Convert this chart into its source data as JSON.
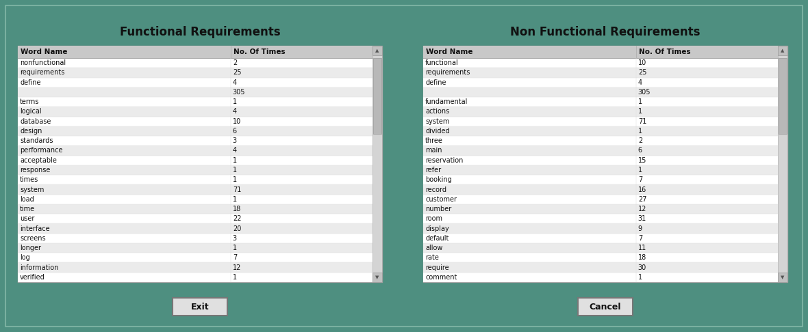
{
  "bg_color": "#4e8f80",
  "panel_bg": "#4e8f80",
  "title_color": "#111111",
  "functional_title": "Functional Requirements",
  "nonfunctional_title": "Non Functional Requirements",
  "col_headers": [
    "Word Name",
    "No. Of Times"
  ],
  "functional_data": [
    [
      "nonfunctional",
      "2"
    ],
    [
      "requirements",
      "25"
    ],
    [
      "define",
      "4"
    ],
    [
      "",
      "305"
    ],
    [
      "terms",
      "1"
    ],
    [
      "logical",
      "4"
    ],
    [
      "database",
      "10"
    ],
    [
      "design",
      "6"
    ],
    [
      "standards",
      "3"
    ],
    [
      "performance",
      "4"
    ],
    [
      "acceptable",
      "1"
    ],
    [
      "response",
      "1"
    ],
    [
      "times",
      "1"
    ],
    [
      "system",
      "71"
    ],
    [
      "load",
      "1"
    ],
    [
      "time",
      "18"
    ],
    [
      "user",
      "22"
    ],
    [
      "interface",
      "20"
    ],
    [
      "screens",
      "3"
    ],
    [
      "longer",
      "1"
    ],
    [
      "log",
      "7"
    ],
    [
      "information",
      "12"
    ],
    [
      "verified",
      "1"
    ]
  ],
  "nonfunctional_data": [
    [
      "functional",
      "10"
    ],
    [
      "requirements",
      "25"
    ],
    [
      "define",
      "4"
    ],
    [
      "",
      "305"
    ],
    [
      "fundamental",
      "1"
    ],
    [
      "actions",
      "1"
    ],
    [
      "system",
      "71"
    ],
    [
      "divided",
      "1"
    ],
    [
      "three",
      "2"
    ],
    [
      "main",
      "6"
    ],
    [
      "reservation",
      "15"
    ],
    [
      "refer",
      "1"
    ],
    [
      "booking",
      "7"
    ],
    [
      "record",
      "16"
    ],
    [
      "customer",
      "27"
    ],
    [
      "number",
      "12"
    ],
    [
      "room",
      "31"
    ],
    [
      "display",
      "9"
    ],
    [
      "default",
      "7"
    ],
    [
      "allow",
      "11"
    ],
    [
      "rate",
      "18"
    ],
    [
      "require",
      "30"
    ],
    [
      "comment",
      "1"
    ]
  ],
  "exit_btn_label": "Exit",
  "cancel_btn_label": "Cancel",
  "fig_w": 11.8,
  "fig_h": 4.86,
  "dpi": 100
}
